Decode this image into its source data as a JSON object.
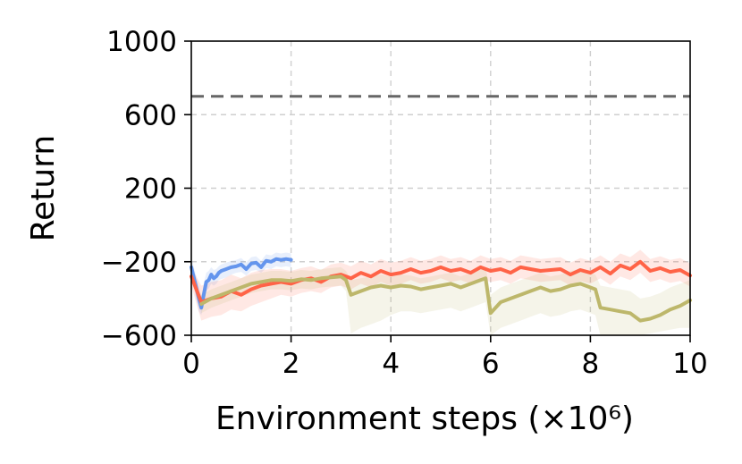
{
  "chart_data": {
    "type": "line",
    "xlabel": "Environment steps (×10⁶)",
    "ylabel": "Return",
    "xlim": [
      0,
      10
    ],
    "ylim": [
      -600,
      1000
    ],
    "x_ticks": [
      "0",
      "2",
      "4",
      "6",
      "8",
      "10"
    ],
    "y_ticks": [
      "−600",
      "−200",
      "200",
      "600",
      "1000"
    ],
    "grid": true,
    "reference_line": {
      "y": 700,
      "style": "dashed",
      "color": "#666666"
    },
    "series": [
      {
        "color": "#6495ED",
        "band_color": "#6495ED",
        "x": [
          0.0,
          0.08,
          0.15,
          0.2,
          0.25,
          0.3,
          0.35,
          0.4,
          0.45,
          0.5,
          0.55,
          0.6,
          0.7,
          0.8,
          0.9,
          1.0,
          1.1,
          1.2,
          1.3,
          1.4,
          1.5,
          1.6,
          1.7,
          1.8,
          1.9,
          2.0
        ],
        "y": [
          -230,
          -320,
          -400,
          -450,
          -380,
          -310,
          -300,
          -270,
          -290,
          -280,
          -260,
          -250,
          -240,
          -230,
          -225,
          -215,
          -240,
          -210,
          -205,
          -230,
          -195,
          -200,
          -185,
          -190,
          -185,
          -190
        ],
        "lower": [
          -280,
          -380,
          -470,
          -490,
          -430,
          -360,
          -345,
          -320,
          -330,
          -320,
          -300,
          -295,
          -285,
          -270,
          -260,
          -255,
          -275,
          -250,
          -245,
          -260,
          -235,
          -240,
          -225,
          -230,
          -225,
          -230
        ],
        "upper": [
          -180,
          -260,
          -330,
          -390,
          -320,
          -260,
          -250,
          -230,
          -245,
          -240,
          -225,
          -215,
          -205,
          -195,
          -190,
          -180,
          -205,
          -175,
          -170,
          -195,
          -160,
          -165,
          -150,
          -155,
          -150,
          -155
        ]
      },
      {
        "color": "#FF6347",
        "band_color": "#FF6347",
        "x": [
          0.0,
          0.2,
          0.4,
          0.6,
          0.8,
          1.0,
          1.2,
          1.4,
          1.6,
          1.8,
          2.0,
          2.2,
          2.4,
          2.6,
          2.8,
          3.0,
          3.2,
          3.4,
          3.6,
          3.8,
          4.0,
          4.2,
          4.4,
          4.6,
          4.8,
          5.0,
          5.2,
          5.4,
          5.6,
          5.8,
          6.0,
          6.2,
          6.4,
          6.6,
          6.8,
          7.0,
          7.2,
          7.4,
          7.6,
          7.8,
          8.0,
          8.2,
          8.4,
          8.6,
          8.8,
          9.0,
          9.2,
          9.4,
          9.6,
          9.8,
          10.0
        ],
        "y": [
          -280,
          -420,
          -400,
          -390,
          -360,
          -380,
          -350,
          -330,
          -320,
          -310,
          -320,
          -300,
          -290,
          -310,
          -280,
          -270,
          -290,
          -260,
          -280,
          -250,
          -270,
          -260,
          -240,
          -260,
          -250,
          -230,
          -250,
          -240,
          -260,
          -230,
          -250,
          -240,
          -260,
          -230,
          -240,
          -250,
          -245,
          -240,
          -270,
          -245,
          -260,
          -230,
          -265,
          -220,
          -240,
          -200,
          -250,
          -235,
          -255,
          -245,
          -275
        ],
        "lower": [
          -330,
          -520,
          -500,
          -490,
          -460,
          -470,
          -440,
          -420,
          -400,
          -380,
          -390,
          -370,
          -360,
          -370,
          -340,
          -330,
          -350,
          -320,
          -340,
          -310,
          -330,
          -320,
          -300,
          -320,
          -310,
          -290,
          -310,
          -300,
          -320,
          -290,
          -310,
          -300,
          -320,
          -290,
          -300,
          -310,
          -305,
          -300,
          -330,
          -305,
          -320,
          -290,
          -325,
          -280,
          -300,
          -260,
          -310,
          -295,
          -315,
          -305,
          -335
        ],
        "upper": [
          -230,
          -330,
          -310,
          -300,
          -270,
          -290,
          -260,
          -245,
          -240,
          -240,
          -250,
          -235,
          -225,
          -245,
          -215,
          -205,
          -225,
          -195,
          -215,
          -185,
          -205,
          -195,
          -175,
          -195,
          -185,
          -165,
          -185,
          -175,
          -195,
          -165,
          -185,
          -175,
          -195,
          -165,
          -175,
          -185,
          -180,
          -175,
          -205,
          -180,
          -195,
          -165,
          -200,
          -155,
          -175,
          -135,
          -185,
          -170,
          -190,
          -180,
          -210
        ]
      },
      {
        "color": "#BDB76B",
        "band_color": "#BDB76B",
        "x": [
          0.2,
          0.4,
          0.6,
          0.8,
          1.0,
          1.2,
          1.4,
          1.6,
          1.8,
          2.0,
          2.2,
          2.4,
          2.6,
          2.8,
          3.0,
          3.1,
          3.2,
          3.4,
          3.6,
          3.8,
          4.0,
          4.2,
          4.4,
          4.6,
          4.8,
          5.0,
          5.2,
          5.4,
          5.6,
          5.8,
          5.9,
          6.0,
          6.2,
          6.4,
          6.6,
          6.8,
          7.0,
          7.2,
          7.4,
          7.6,
          7.8,
          8.0,
          8.1,
          8.2,
          8.4,
          8.6,
          8.8,
          9.0,
          9.2,
          9.4,
          9.6,
          9.8,
          10.0
        ],
        "y": [
          -430,
          -400,
          -380,
          -360,
          -340,
          -320,
          -310,
          -300,
          -300,
          -305,
          -295,
          -300,
          -290,
          -285,
          -280,
          -300,
          -380,
          -360,
          -340,
          -330,
          -340,
          -330,
          -335,
          -350,
          -340,
          -330,
          -320,
          -340,
          -320,
          -300,
          -290,
          -480,
          -420,
          -400,
          -380,
          -360,
          -340,
          -360,
          -350,
          -330,
          -320,
          -340,
          -350,
          -450,
          -460,
          -470,
          -480,
          -520,
          -510,
          -490,
          -460,
          -440,
          -410
        ],
        "lower": [
          -480,
          -450,
          -430,
          -410,
          -390,
          -370,
          -360,
          -350,
          -350,
          -355,
          -345,
          -350,
          -340,
          -335,
          -330,
          -360,
          -590,
          -560,
          -540,
          -520,
          -490,
          -470,
          -470,
          -480,
          -470,
          -460,
          -450,
          -470,
          -450,
          -430,
          -420,
          -600,
          -560,
          -540,
          -520,
          -500,
          -480,
          -500,
          -490,
          -470,
          -460,
          -480,
          -490,
          -600,
          -600,
          -600,
          -600,
          -600,
          -590,
          -580,
          -570,
          -560,
          -560
        ],
        "upper": [
          -380,
          -350,
          -330,
          -310,
          -290,
          -270,
          -260,
          -250,
          -250,
          -255,
          -245,
          -250,
          -240,
          -235,
          -230,
          -250,
          -300,
          -290,
          -280,
          -270,
          -280,
          -270,
          -275,
          -290,
          -280,
          -270,
          -260,
          -280,
          -260,
          -240,
          -230,
          -380,
          -340,
          -320,
          -300,
          -280,
          -260,
          -280,
          -270,
          -250,
          -240,
          -260,
          -270,
          -330,
          -340,
          -350,
          -360,
          -400,
          -390,
          -370,
          -340,
          -320,
          -300
        ]
      }
    ]
  }
}
